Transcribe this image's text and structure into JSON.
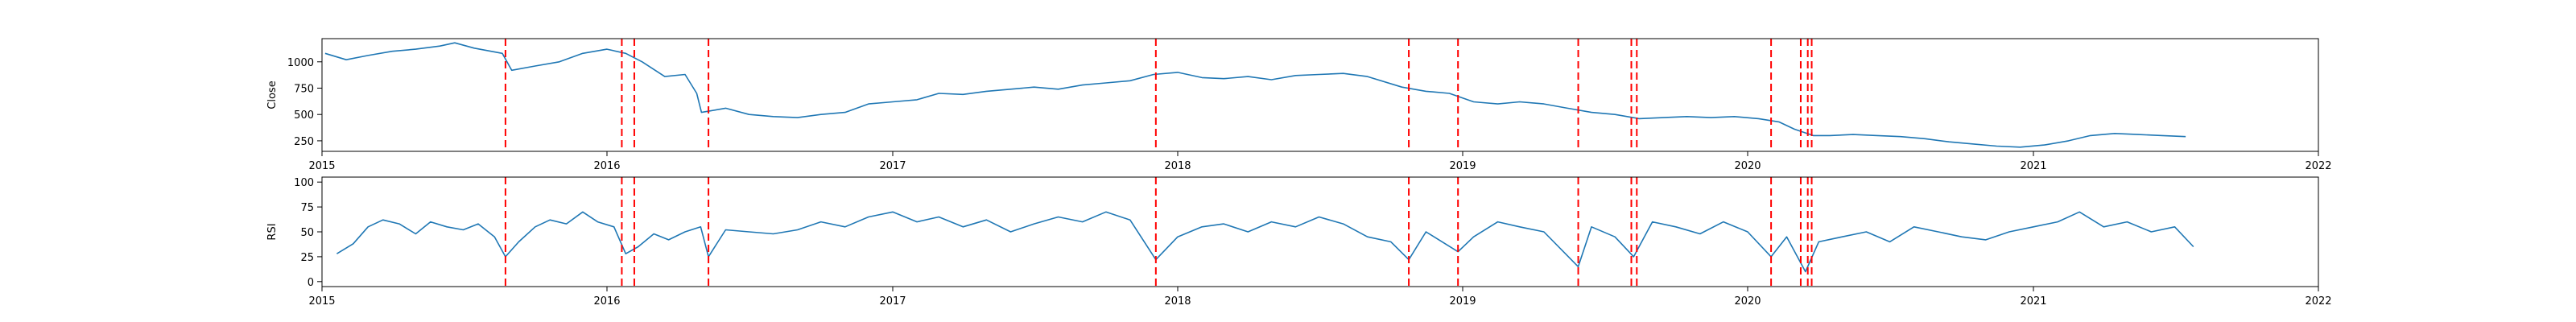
{
  "chart_data": [
    {
      "type": "line",
      "title": "",
      "xlabel": "",
      "ylabel": "Close",
      "x_ticks": [
        "2015",
        "2016",
        "2017",
        "2018",
        "2019",
        "2020",
        "2021",
        "2022"
      ],
      "xlim": [
        "2015-01-01",
        "2022-01-01"
      ],
      "y_ticks": [
        250,
        500,
        750,
        1000
      ],
      "ylim": [
        150,
        1220
      ],
      "grid": false,
      "line_color": "#1f77b4",
      "series": [
        {
          "x": [
            "2015-01-05",
            "2015-02-01",
            "2015-03-01",
            "2015-04-01",
            "2015-05-01",
            "2015-06-01",
            "2015-06-20",
            "2015-07-15",
            "2015-08-20",
            "2015-09-01",
            "2015-10-01",
            "2015-11-01",
            "2015-12-01",
            "2016-01-01",
            "2016-01-25",
            "2016-02-15",
            "2016-03-15",
            "2016-04-10",
            "2016-04-25",
            "2016-05-01",
            "2016-06-01",
            "2016-07-01",
            "2016-08-01",
            "2016-09-01",
            "2016-10-01",
            "2016-11-01",
            "2016-12-01",
            "2017-01-01",
            "2017-02-01",
            "2017-03-01",
            "2017-04-01",
            "2017-05-01",
            "2017-06-01",
            "2017-07-01",
            "2017-08-01",
            "2017-09-01",
            "2017-10-01",
            "2017-11-01",
            "2017-12-01",
            "2018-01-01",
            "2018-02-01",
            "2018-03-01",
            "2018-04-01",
            "2018-05-01",
            "2018-06-01",
            "2018-07-01",
            "2018-08-01",
            "2018-09-01",
            "2018-10-15",
            "2018-11-15",
            "2018-12-15",
            "2019-01-15",
            "2019-02-15",
            "2019-03-15",
            "2019-04-15",
            "2019-05-15",
            "2019-06-15",
            "2019-07-15",
            "2019-08-15",
            "2019-09-15",
            "2019-10-15",
            "2019-11-15",
            "2019-12-15",
            "2020-01-15",
            "2020-02-10",
            "2020-03-01",
            "2020-03-25",
            "2020-04-15",
            "2020-05-15",
            "2020-06-15",
            "2020-07-15",
            "2020-08-15",
            "2020-09-15",
            "2020-10-15",
            "2020-11-15",
            "2020-12-15",
            "2021-01-15",
            "2021-02-15",
            "2021-03-15",
            "2021-04-15",
            "2021-05-15",
            "2021-06-15",
            "2021-07-15"
          ],
          "y": [
            1080,
            1020,
            1060,
            1100,
            1120,
            1150,
            1180,
            1130,
            1080,
            920,
            960,
            1000,
            1080,
            1120,
            1080,
            1000,
            860,
            880,
            700,
            520,
            560,
            500,
            480,
            470,
            500,
            520,
            600,
            620,
            640,
            700,
            690,
            720,
            740,
            760,
            740,
            780,
            800,
            820,
            880,
            900,
            850,
            840,
            860,
            830,
            870,
            880,
            890,
            860,
            760,
            720,
            700,
            620,
            600,
            620,
            600,
            560,
            520,
            500,
            460,
            470,
            480,
            470,
            480,
            460,
            430,
            360,
            300,
            300,
            310,
            300,
            290,
            270,
            240,
            220,
            200,
            190,
            210,
            250,
            300,
            320,
            310,
            300,
            290
          ]
        }
      ],
      "vlines": [
        "2015-08-24",
        "2016-01-20",
        "2016-02-05",
        "2016-05-10",
        "2017-12-04",
        "2018-10-24",
        "2018-12-26",
        "2019-05-29",
        "2019-08-05",
        "2019-08-12",
        "2020-01-31",
        "2020-03-09",
        "2020-03-18",
        "2020-03-23"
      ],
      "vline_color": "#ff0000"
    },
    {
      "type": "line",
      "title": "",
      "xlabel": "",
      "ylabel": "RSI",
      "x_ticks": [
        "2015",
        "2016",
        "2017",
        "2018",
        "2019",
        "2020",
        "2021",
        "2022"
      ],
      "xlim": [
        "2015-01-01",
        "2022-01-01"
      ],
      "y_ticks": [
        0,
        25,
        50,
        75,
        100
      ],
      "ylim": [
        -5,
        105
      ],
      "grid": false,
      "line_color": "#1f77b4",
      "series": [
        {
          "x": [
            "2015-01-20",
            "2015-02-10",
            "2015-03-01",
            "2015-03-20",
            "2015-04-10",
            "2015-05-01",
            "2015-05-20",
            "2015-06-10",
            "2015-07-01",
            "2015-07-20",
            "2015-08-10",
            "2015-08-24",
            "2015-09-10",
            "2015-10-01",
            "2015-10-20",
            "2015-11-10",
            "2015-12-01",
            "2015-12-20",
            "2016-01-10",
            "2016-01-25",
            "2016-02-10",
            "2016-03-01",
            "2016-03-20",
            "2016-04-10",
            "2016-04-30",
            "2016-05-10",
            "2016-06-01",
            "2016-07-01",
            "2016-08-01",
            "2016-09-01",
            "2016-10-01",
            "2016-11-01",
            "2016-12-01",
            "2017-01-01",
            "2017-02-01",
            "2017-03-01",
            "2017-04-01",
            "2017-05-01",
            "2017-06-01",
            "2017-07-01",
            "2017-08-01",
            "2017-09-01",
            "2017-10-01",
            "2017-11-01",
            "2017-12-04",
            "2018-01-01",
            "2018-02-01",
            "2018-03-01",
            "2018-04-01",
            "2018-05-01",
            "2018-06-01",
            "2018-07-01",
            "2018-08-01",
            "2018-09-01",
            "2018-10-01",
            "2018-10-24",
            "2018-11-15",
            "2018-12-26",
            "2019-01-15",
            "2019-02-15",
            "2019-03-15",
            "2019-04-15",
            "2019-05-29",
            "2019-06-15",
            "2019-07-15",
            "2019-08-08",
            "2019-09-01",
            "2019-10-01",
            "2019-11-01",
            "2019-12-01",
            "2020-01-01",
            "2020-01-31",
            "2020-02-20",
            "2020-03-15",
            "2020-04-01",
            "2020-05-01",
            "2020-06-01",
            "2020-07-01",
            "2020-08-01",
            "2020-09-01",
            "2020-10-01",
            "2020-11-01",
            "2020-12-01",
            "2021-01-01",
            "2021-02-01",
            "2021-03-01",
            "2021-04-01",
            "2021-05-01",
            "2021-06-01",
            "2021-07-01",
            "2021-07-25"
          ],
          "y": [
            28,
            38,
            55,
            62,
            58,
            48,
            60,
            55,
            52,
            58,
            45,
            25,
            40,
            55,
            62,
            58,
            70,
            60,
            55,
            28,
            35,
            48,
            42,
            50,
            55,
            25,
            52,
            50,
            48,
            52,
            60,
            55,
            65,
            70,
            60,
            65,
            55,
            62,
            50,
            58,
            65,
            60,
            70,
            62,
            22,
            45,
            55,
            58,
            50,
            60,
            55,
            65,
            58,
            45,
            40,
            22,
            50,
            30,
            45,
            60,
            55,
            50,
            15,
            55,
            45,
            25,
            60,
            55,
            48,
            60,
            50,
            25,
            45,
            10,
            40,
            45,
            50,
            40,
            55,
            50,
            45,
            42,
            50,
            55,
            60,
            70,
            55,
            60,
            50,
            55,
            35
          ]
        }
      ],
      "vlines": [
        "2015-08-24",
        "2016-01-20",
        "2016-02-05",
        "2016-05-10",
        "2017-12-04",
        "2018-10-24",
        "2018-12-26",
        "2019-05-29",
        "2019-08-05",
        "2019-08-12",
        "2020-01-31",
        "2020-03-09",
        "2020-03-18",
        "2020-03-23"
      ],
      "vline_color": "#ff0000"
    }
  ]
}
